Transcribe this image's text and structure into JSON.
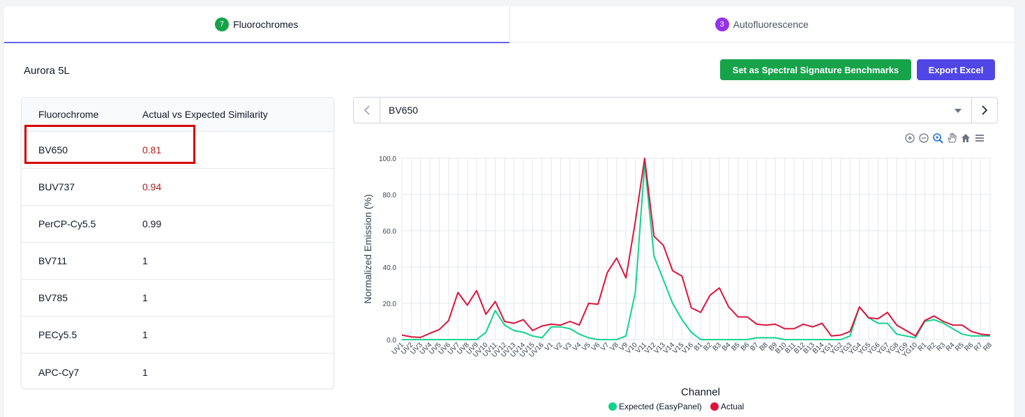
{
  "tabs": [
    {
      "badge": "7",
      "label": "Fluorochromes"
    },
    {
      "badge": "3",
      "label": "Autofluorescence"
    }
  ],
  "instrument_title": "Aurora 5L",
  "buttons": {
    "benchmark": "Set as Spectral Signature Benchmarks",
    "export": "Export Excel"
  },
  "table": {
    "headers": [
      "Fluorochrome",
      "Actual vs Expected Similarity"
    ],
    "rows": [
      {
        "name": "BV650",
        "value": "0.81",
        "flag": true
      },
      {
        "name": "BUV737",
        "value": "0.94",
        "flag": true
      },
      {
        "name": "PerCP-Cy5.5",
        "value": "0.99",
        "flag": false
      },
      {
        "name": "BV711",
        "value": "1",
        "flag": false
      },
      {
        "name": "BV785",
        "value": "1",
        "flag": false
      },
      {
        "name": "PECy5.5",
        "value": "1",
        "flag": false
      },
      {
        "name": "APC-Cy7",
        "value": "1",
        "flag": false
      }
    ]
  },
  "selector": {
    "value": "BV650"
  },
  "toolbar_icons": [
    "zoom-in-icon",
    "zoom-out-icon",
    "zoom-selection-icon",
    "pan-hand-icon",
    "home-icon",
    "menu-icon"
  ],
  "chart_data": {
    "type": "line",
    "xlabel": "Channel",
    "ylabel": "Normalized Emission (%)",
    "ylim": [
      0,
      100
    ],
    "yticks": [
      "0.0",
      "20.0",
      "40.0",
      "60.0",
      "80.0",
      "100.0"
    ],
    "grid": true,
    "legend_position": "bottom",
    "x": [
      "UV1",
      "UV2",
      "UV3",
      "UV4",
      "UV5",
      "UV6",
      "UV7",
      "UV8",
      "UV9",
      "UV10",
      "UV11",
      "UV12",
      "UV13",
      "UV14",
      "UV15",
      "UV16",
      "V1",
      "V2",
      "V3",
      "V4",
      "V5",
      "V6",
      "V7",
      "V8",
      "V9",
      "V10",
      "V11",
      "V12",
      "V13",
      "V14",
      "V15",
      "V16",
      "B1",
      "B2",
      "B3",
      "B4",
      "B5",
      "B6",
      "B7",
      "B8",
      "B9",
      "B10",
      "B11",
      "B12",
      "B13",
      "B14",
      "YG1",
      "YG2",
      "YG3",
      "YG4",
      "YG5",
      "YG6",
      "YG7",
      "YG8",
      "YG9",
      "YG10",
      "R1",
      "R2",
      "R3",
      "R4",
      "R5",
      "R6",
      "R7",
      "R8"
    ],
    "series": [
      {
        "name": "Expected (EasyPanel)",
        "color": "#10d48e",
        "values": [
          0,
          0,
          0,
          0,
          0,
          0,
          0,
          0,
          0,
          4,
          16,
          8,
          5,
          4,
          2,
          1,
          7,
          7,
          6,
          3,
          1,
          0,
          0,
          0,
          2,
          26,
          97,
          46,
          33,
          20,
          11,
          4,
          0,
          0,
          0,
          0,
          0,
          0,
          1,
          1,
          1,
          0,
          0,
          0,
          0,
          0,
          0,
          0,
          2,
          18,
          12,
          9,
          9,
          3,
          2,
          1,
          10,
          11,
          9,
          6,
          3,
          2,
          2,
          2
        ]
      },
      {
        "name": "Actual",
        "color": "#dc143c",
        "values": [
          2.5,
          1.5,
          1.2,
          3.5,
          5.5,
          10.5,
          26,
          19,
          27,
          14,
          21,
          10,
          9,
          11,
          5,
          7.5,
          8.5,
          8,
          10,
          8,
          20,
          19.5,
          37,
          45,
          34,
          65,
          100,
          57,
          52,
          38,
          35,
          17.5,
          15,
          24.5,
          28.5,
          18,
          12.5,
          12.5,
          8.5,
          8,
          8.5,
          6,
          6,
          8.5,
          7,
          9,
          2,
          2.5,
          4.5,
          18,
          12,
          11.5,
          15,
          8,
          5,
          2,
          10.5,
          13,
          10,
          8,
          8,
          4.5,
          3,
          2.5
        ]
      }
    ]
  }
}
